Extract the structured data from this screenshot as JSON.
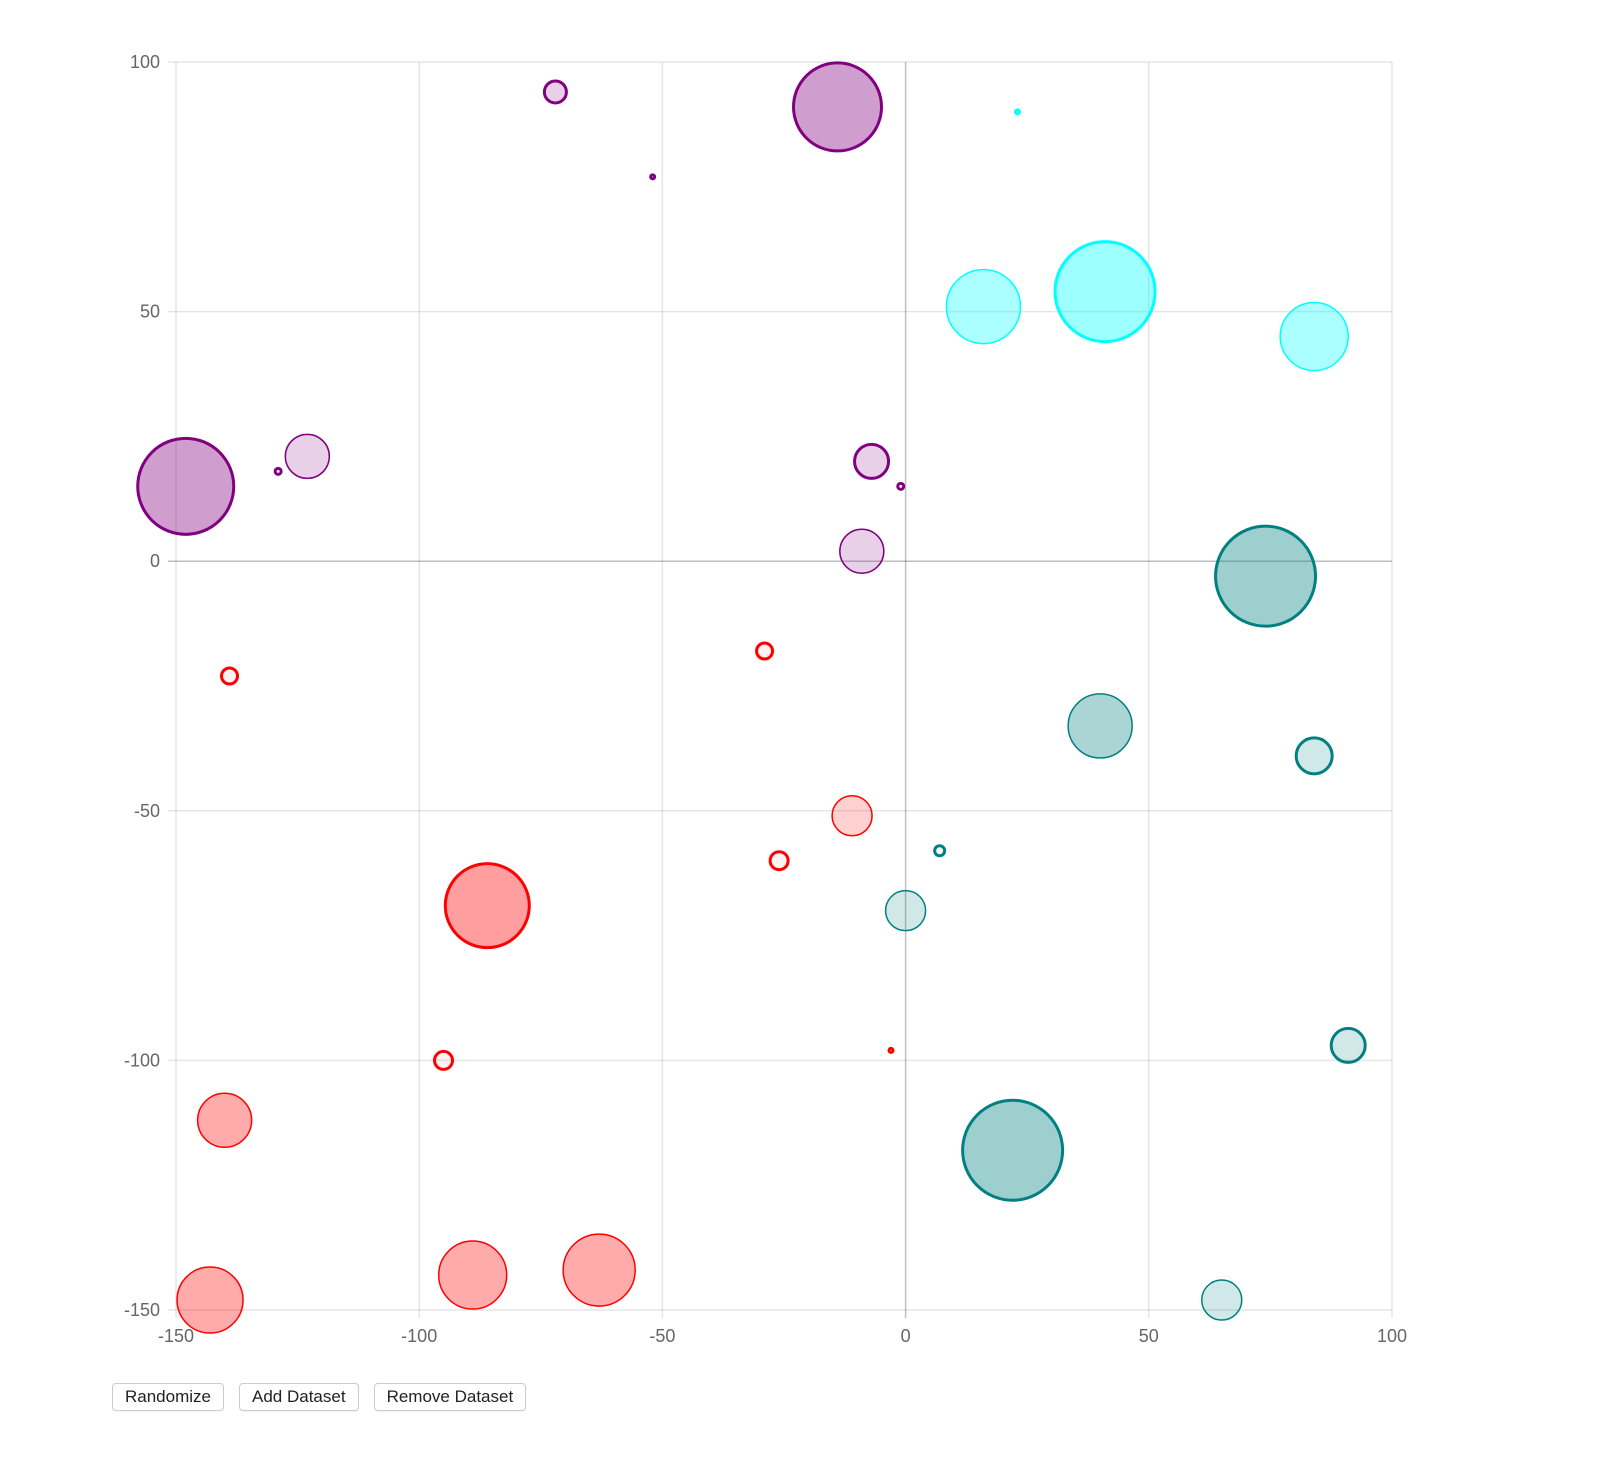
{
  "chart_data": {
    "type": "bubble",
    "xlim": [
      -150,
      100
    ],
    "ylim": [
      -150,
      100
    ],
    "x_ticks": [
      -150,
      -100,
      -50,
      0,
      50,
      100
    ],
    "y_ticks": [
      100,
      50,
      0,
      -50,
      -100,
      -150
    ],
    "grid": true,
    "legend": "none",
    "series": [
      {
        "color": "#ff0000",
        "points": [
          {
            "x": -139,
            "y": -23,
            "r": 8
          },
          {
            "x": -29,
            "y": -18,
            "r": 8
          },
          {
            "x": -11,
            "y": -51,
            "r": 20
          },
          {
            "x": -26,
            "y": -60,
            "r": 9
          },
          {
            "x": -86,
            "y": -69,
            "r": 42
          },
          {
            "x": -95,
            "y": -100,
            "r": 9
          },
          {
            "x": -3,
            "y": -98,
            "r": 2
          },
          {
            "x": -140,
            "y": -112,
            "r": 27
          },
          {
            "x": -143,
            "y": -148,
            "r": 33
          },
          {
            "x": -89,
            "y": -143,
            "r": 34
          },
          {
            "x": -63,
            "y": -142,
            "r": 36
          }
        ]
      },
      {
        "color": "#800080",
        "points": [
          {
            "x": -72,
            "y": 94,
            "r": 11
          },
          {
            "x": -52,
            "y": 77,
            "r": 2
          },
          {
            "x": -14,
            "y": 91,
            "r": 44
          },
          {
            "x": -148,
            "y": 15,
            "r": 48
          },
          {
            "x": -129,
            "y": 18,
            "r": 3
          },
          {
            "x": -123,
            "y": 21,
            "r": 22
          },
          {
            "x": -7,
            "y": 20,
            "r": 17
          },
          {
            "x": -1,
            "y": 15,
            "r": 3
          },
          {
            "x": -9,
            "y": 2,
            "r": 22
          }
        ]
      },
      {
        "color": "#00ffff",
        "points": [
          {
            "x": 23,
            "y": 90,
            "r": 2
          },
          {
            "x": 16,
            "y": 51,
            "r": 37
          },
          {
            "x": 41,
            "y": 54,
            "r": 50
          },
          {
            "x": 84,
            "y": 45,
            "r": 34
          }
        ]
      },
      {
        "color": "#008080",
        "points": [
          {
            "x": 74,
            "y": -3,
            "r": 50
          },
          {
            "x": 40,
            "y": -33,
            "r": 32
          },
          {
            "x": 84,
            "y": -39,
            "r": 18
          },
          {
            "x": 7,
            "y": -58,
            "r": 5
          },
          {
            "x": 0,
            "y": -70,
            "r": 20
          },
          {
            "x": 91,
            "y": -97,
            "r": 17
          },
          {
            "x": 22,
            "y": -118,
            "r": 50
          },
          {
            "x": 65,
            "y": -148,
            "r": 20
          }
        ]
      }
    ]
  },
  "controls": {
    "randomize": "Randomize",
    "add_dataset": "Add Dataset",
    "remove_dataset": "Remove Dataset"
  }
}
